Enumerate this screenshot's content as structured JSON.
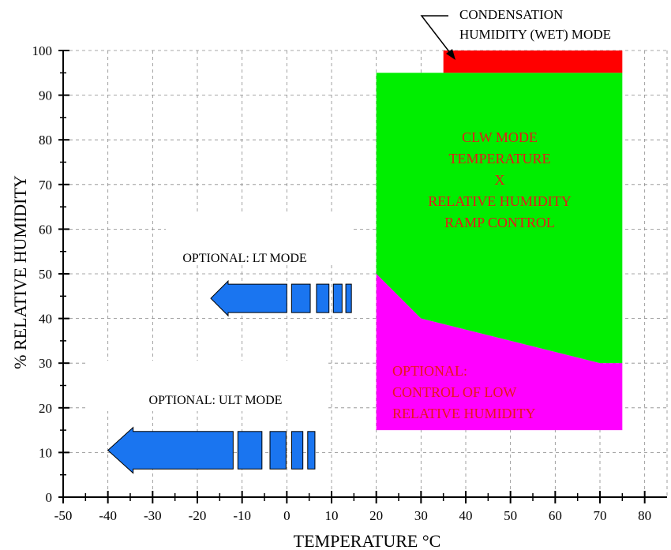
{
  "chart_data": {
    "type": "area",
    "title": "",
    "xlabel": "TEMPERATURE °C",
    "ylabel": "% RELATIVE HUMIDITY",
    "xlim": [
      -50,
      80
    ],
    "ylim": [
      0,
      100
    ],
    "x_ticks": [
      -50,
      -40,
      -30,
      -20,
      -10,
      0,
      10,
      20,
      30,
      40,
      50,
      60,
      70,
      80
    ],
    "y_ticks": [
      0,
      10,
      20,
      30,
      40,
      50,
      60,
      70,
      80,
      90,
      100
    ],
    "grid": true,
    "regions": [
      {
        "label_lines": [
          "CLW MODE",
          "TEMPERATURE",
          "X",
          "RELATIVE HUMIDITY",
          "RAMP CONTROL"
        ],
        "color": "#00ee00",
        "text_color": "#e8161b",
        "polygon": [
          [
            20,
            95
          ],
          [
            75,
            95
          ],
          [
            75,
            30
          ],
          [
            70,
            30
          ],
          [
            30,
            40
          ],
          [
            20,
            50
          ]
        ]
      },
      {
        "label_lines": [
          "OPTIONAL:",
          "CONTROL OF LOW",
          "RELATIVE HUMIDITY"
        ],
        "color": "#ff00ff",
        "text_color": "#e8161b",
        "polygon": [
          [
            20,
            50
          ],
          [
            30,
            40
          ],
          [
            70,
            30
          ],
          [
            75,
            30
          ],
          [
            75,
            15
          ],
          [
            20,
            15
          ]
        ]
      },
      {
        "label_lines": [
          "CONDENSATION",
          "HUMIDITY (WET) MODE"
        ],
        "color": "#ff0000",
        "text_color": "#000000",
        "polygon": [
          [
            35,
            100
          ],
          [
            75,
            100
          ],
          [
            75,
            95
          ],
          [
            35,
            95
          ]
        ]
      }
    ],
    "arrows": [
      {
        "label": "OPTIONAL:  LT MODE",
        "x_from": 15,
        "x_to": -17,
        "y": 44.5,
        "color": "#1a75f0"
      },
      {
        "label": "OPTIONAL: ULT MODE",
        "x_from": 7,
        "x_to": -40,
        "y": 10.5,
        "color": "#1a75f0"
      }
    ]
  }
}
